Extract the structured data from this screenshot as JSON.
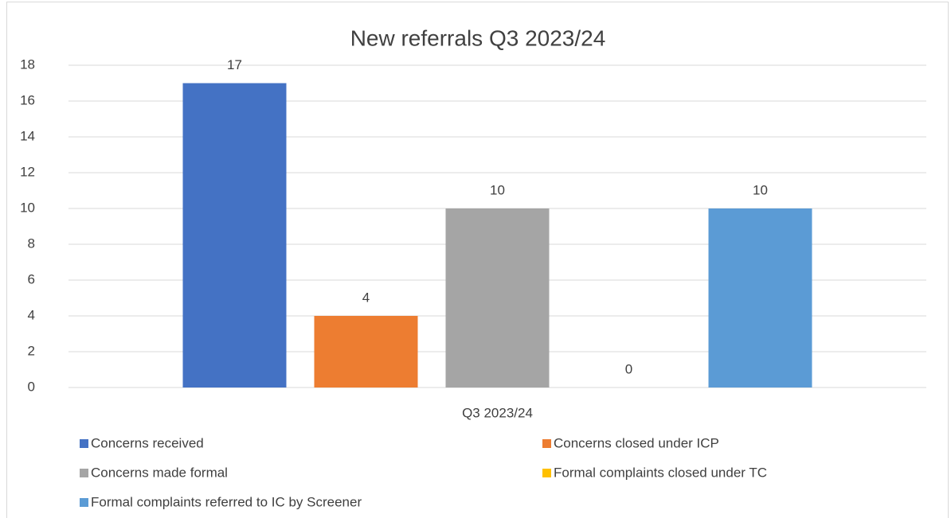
{
  "chart_data": {
    "type": "bar",
    "title": "New referrals Q3 2023/24",
    "categories": [
      "Q3 2023/24"
    ],
    "series": [
      {
        "name": "Concerns received",
        "color": "#4472c4",
        "values": [
          17
        ]
      },
      {
        "name": "Concerns closed under ICP",
        "color": "#ed7d31",
        "values": [
          4
        ]
      },
      {
        "name": "Concerns made formal",
        "color": "#a5a5a5",
        "values": [
          10
        ]
      },
      {
        "name": "Formal complaints closed under TC",
        "color": "#ffc000",
        "values": [
          0
        ]
      },
      {
        "name": "Formal complaints referred to IC by Screener",
        "color": "#5b9bd5",
        "values": [
          10
        ]
      }
    ],
    "ylim": [
      0,
      18
    ],
    "yticks": [
      0,
      2,
      4,
      6,
      8,
      10,
      12,
      14,
      16,
      18
    ],
    "grid": true,
    "legend": "bottom"
  }
}
